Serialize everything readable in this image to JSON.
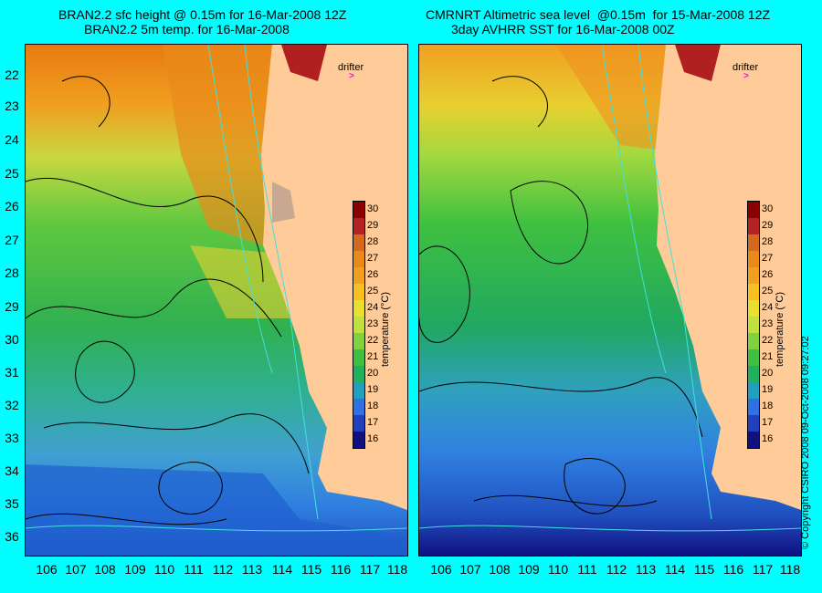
{
  "left_panel": {
    "title_line1": "BRAN2.2 sfc height @ 0.15m for 16-Mar-2008 12Z",
    "title_line2": "BRAN2.2 5m temp. for 16-Mar-2008"
  },
  "right_panel": {
    "title_line1": "CMRNRT Altimetric sea level  @0.15m  for 15-Mar-2008 12Z",
    "title_line2": "3day AVHRR SST for 16-Mar-2008 00Z"
  },
  "y_labels": [
    "22",
    "23",
    "24",
    "25",
    "26",
    "27",
    "28",
    "29",
    "30",
    "31",
    "32",
    "33",
    "34",
    "35",
    "36"
  ],
  "x_labels": [
    "106",
    "107",
    "108",
    "109",
    "110",
    "111",
    "112",
    "113",
    "114",
    "115",
    "116",
    "117",
    "118"
  ],
  "colorbar": {
    "ticks": [
      "30",
      "29",
      "28",
      "27",
      "26",
      "25",
      "24",
      "23",
      "22",
      "21",
      "20",
      "19",
      "18",
      "17",
      "16"
    ],
    "label": "temperature (°C)",
    "colors": [
      "#8b0000",
      "#b22222",
      "#d2691e",
      "#e88a1a",
      "#f0a020",
      "#f5c020",
      "#e8e030",
      "#c0e040",
      "#80d040",
      "#40c040",
      "#20b060",
      "#20a0c0",
      "#3070e0",
      "#2040c0",
      "#101080"
    ]
  },
  "drifter_label": "drifter",
  "drifter_marker": ">",
  "copyright": "© Copyright CSIRO 2008   09-Oct-2008 09:27:02"
}
